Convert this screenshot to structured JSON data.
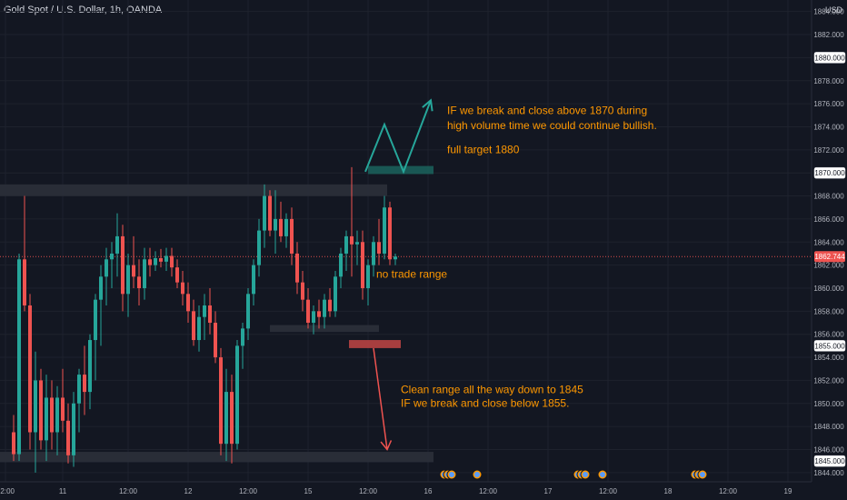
{
  "header": {
    "symbol_title": "Gold Spot / U.S. Dollar, 1h, OANDA",
    "currency": "USD"
  },
  "colors": {
    "background": "#131722",
    "grid": "#1e222d",
    "text": "#b2b5be",
    "bull": "#26a69a",
    "bear": "#ef5350",
    "annotation": "#ff9800",
    "teal_zone": "#1b5e5a",
    "red_zone": "#b84242",
    "gray_zone": "#2a2e39",
    "price_line": "#ef5350",
    "arrow_up": "#26a69a",
    "arrow_down": "#ef5350"
  },
  "chart_data": {
    "type": "candlestick",
    "title": "Gold Spot / U.S. Dollar, 1h, OANDA",
    "y_axis": {
      "side": "right",
      "unit": "USD",
      "ylim": [
        1843.2,
        1885.0
      ],
      "ticks": [
        1844,
        1846,
        1848,
        1850,
        1852,
        1854,
        1856,
        1858,
        1860,
        1862,
        1864,
        1866,
        1868,
        1870,
        1872,
        1874,
        1876,
        1878,
        1880,
        1882,
        1884
      ]
    },
    "x_axis": {
      "ticks": [
        {
          "label": "12:00",
          "bar": -1.5
        },
        {
          "label": "11",
          "bar": 9
        },
        {
          "label": "12:00",
          "bar": 21
        },
        {
          "label": "12",
          "bar": 32
        },
        {
          "label": "12:00",
          "bar": 43
        },
        {
          "label": "15",
          "bar": 54
        },
        {
          "label": "12:00",
          "bar": 65
        },
        {
          "label": "16",
          "bar": 76
        },
        {
          "label": "12:00",
          "bar": 87
        },
        {
          "label": "17",
          "bar": 98
        },
        {
          "label": "12:00",
          "bar": 109
        },
        {
          "label": "18",
          "bar": 120
        },
        {
          "label": "12:00",
          "bar": 131
        },
        {
          "label": "19",
          "bar": 142
        }
      ]
    },
    "candles": [
      [
        1847.5,
        1849.0,
        1845.0,
        1845.6
      ],
      [
        1845.6,
        1863.0,
        1845.0,
        1862.5
      ],
      [
        1862.5,
        1868.0,
        1858.0,
        1858.5
      ],
      [
        1858.5,
        1859.5,
        1846.0,
        1847.5
      ],
      [
        1847.5,
        1854.5,
        1844.0,
        1852.0
      ],
      [
        1852.0,
        1853.0,
        1846.0,
        1846.8
      ],
      [
        1846.8,
        1852.5,
        1845.0,
        1850.5
      ],
      [
        1850.5,
        1852.0,
        1846.0,
        1847.5
      ],
      [
        1847.5,
        1851.5,
        1845.5,
        1850.5
      ],
      [
        1850.5,
        1853.0,
        1847.5,
        1848.5
      ],
      [
        1848.5,
        1850.0,
        1844.8,
        1845.5
      ],
      [
        1845.5,
        1851.0,
        1844.5,
        1850.0
      ],
      [
        1850.0,
        1853.0,
        1847.5,
        1852.5
      ],
      [
        1852.5,
        1855.0,
        1849.0,
        1851.0
      ],
      [
        1851.0,
        1856.0,
        1849.5,
        1855.5
      ],
      [
        1855.5,
        1859.5,
        1852.0,
        1859.0
      ],
      [
        1859.0,
        1862.0,
        1855.0,
        1861.0
      ],
      [
        1861.0,
        1863.5,
        1858.5,
        1862.5
      ],
      [
        1862.5,
        1864.0,
        1860.0,
        1863.0
      ],
      [
        1863.0,
        1866.5,
        1861.0,
        1864.5
      ],
      [
        1864.5,
        1865.5,
        1858.0,
        1859.5
      ],
      [
        1859.5,
        1863.0,
        1857.5,
        1862.0
      ],
      [
        1862.0,
        1864.5,
        1860.0,
        1861.0
      ],
      [
        1861.0,
        1862.5,
        1858.5,
        1860.0
      ],
      [
        1860.0,
        1863.5,
        1859.0,
        1862.5
      ],
      [
        1862.5,
        1863.5,
        1861.0,
        1862.0
      ],
      [
        1862.0,
        1863.2,
        1861.5,
        1862.6
      ],
      [
        1862.6,
        1863.4,
        1861.8,
        1862.3
      ],
      [
        1862.3,
        1863.5,
        1861.5,
        1862.8
      ],
      [
        1862.8,
        1863.5,
        1861.0,
        1861.8
      ],
      [
        1861.8,
        1862.5,
        1860.0,
        1860.5
      ],
      [
        1860.5,
        1861.5,
        1858.5,
        1859.5
      ],
      [
        1859.5,
        1860.5,
        1857.0,
        1858.0
      ],
      [
        1858.0,
        1859.0,
        1855.0,
        1855.5
      ],
      [
        1855.5,
        1858.5,
        1854.5,
        1857.5
      ],
      [
        1857.5,
        1859.5,
        1855.5,
        1858.5
      ],
      [
        1858.5,
        1860.0,
        1856.0,
        1857.0
      ],
      [
        1857.0,
        1858.0,
        1853.5,
        1854.0
      ],
      [
        1854.0,
        1854.8,
        1845.5,
        1846.5
      ],
      [
        1846.5,
        1853.0,
        1845.0,
        1851.0
      ],
      [
        1851.0,
        1852.5,
        1844.8,
        1846.5
      ],
      [
        1846.5,
        1855.5,
        1846.0,
        1855.0
      ],
      [
        1855.0,
        1857.0,
        1853.0,
        1856.5
      ],
      [
        1856.5,
        1860.0,
        1855.5,
        1859.5
      ],
      [
        1859.5,
        1862.5,
        1858.5,
        1862.0
      ],
      [
        1862.0,
        1866.0,
        1861.0,
        1865.0
      ],
      [
        1865.0,
        1869.0,
        1863.5,
        1868.0
      ],
      [
        1868.0,
        1868.5,
        1864.5,
        1865.0
      ],
      [
        1865.0,
        1868.5,
        1863.0,
        1866.0
      ],
      [
        1866.0,
        1867.5,
        1864.0,
        1864.5
      ],
      [
        1864.5,
        1866.5,
        1863.5,
        1866.0
      ],
      [
        1866.0,
        1867.0,
        1862.0,
        1863.0
      ],
      [
        1863.0,
        1864.0,
        1859.5,
        1860.5
      ],
      [
        1860.5,
        1861.5,
        1858.0,
        1859.0
      ],
      [
        1859.0,
        1860.0,
        1856.5,
        1857.0
      ],
      [
        1857.0,
        1858.5,
        1856.0,
        1858.0
      ],
      [
        1858.0,
        1859.0,
        1856.5,
        1857.5
      ],
      [
        1857.5,
        1859.5,
        1856.5,
        1859.0
      ],
      [
        1859.0,
        1860.0,
        1857.5,
        1858.0
      ],
      [
        1858.0,
        1861.5,
        1857.5,
        1861.0
      ],
      [
        1861.0,
        1863.5,
        1860.0,
        1863.0
      ],
      [
        1863.0,
        1865.0,
        1861.5,
        1864.5
      ],
      [
        1864.5,
        1870.5,
        1861.0,
        1863.8
      ],
      [
        1863.8,
        1865.0,
        1862.0,
        1864.0
      ],
      [
        1864.0,
        1865.0,
        1859.0,
        1860.0
      ],
      [
        1860.0,
        1862.5,
        1858.5,
        1862.0
      ],
      [
        1862.0,
        1864.5,
        1861.0,
        1864.0
      ],
      [
        1864.0,
        1866.0,
        1862.0,
        1863.0
      ],
      [
        1863.0,
        1868.0,
        1862.5,
        1867.0
      ],
      [
        1867.0,
        1867.5,
        1862.0,
        1862.5
      ],
      [
        1862.5,
        1863.0,
        1862.0,
        1862.74
      ]
    ],
    "current_price": 1862.744,
    "axis_labels": [
      {
        "value": 1880.0,
        "text": "1880.000",
        "style": "highlight"
      },
      {
        "value": 1870.0,
        "text": "1870.000",
        "style": "highlight"
      },
      {
        "value": 1862.744,
        "text": "1862.744",
        "style": "price"
      },
      {
        "value": 1855.0,
        "text": "1855.000",
        "style": "highlight"
      },
      {
        "value": 1845.0,
        "text": "1845.000",
        "style": "highlight"
      }
    ],
    "zones": [
      {
        "x0": -7.0,
        "x1": 68.5,
        "y0": 1868.0,
        "y1": 1869.0,
        "color": "gray"
      },
      {
        "x0": 47.0,
        "x1": 67.0,
        "y0": 1856.2,
        "y1": 1856.8,
        "color": "gray"
      },
      {
        "x0": -6.5,
        "x1": 77.0,
        "y0": 1844.9,
        "y1": 1845.8,
        "color": "gray"
      },
      {
        "x0": 65.0,
        "x1": 77.0,
        "y0": 1869.9,
        "y1": 1870.6,
        "color": "teal"
      },
      {
        "x0": 61.5,
        "x1": 71.0,
        "y0": 1854.8,
        "y1": 1855.5,
        "color": "red"
      }
    ],
    "up_arrow": [
      [
        64.5,
        1870.1
      ],
      [
        68.0,
        1874.2
      ],
      [
        71.5,
        1870.1
      ],
      [
        76.5,
        1876.3
      ]
    ],
    "down_arrow": [
      [
        66.0,
        1854.8
      ],
      [
        68.5,
        1846.0
      ]
    ],
    "annotations": [
      {
        "text": "IF we break and close above 1870 during",
        "bar": 79.5,
        "value": 1875.1
      },
      {
        "text": "high volume time we could continue bullish.",
        "bar": 79.5,
        "value": 1873.8
      },
      {
        "text": "full target 1880",
        "bar": 79.5,
        "value": 1871.7
      },
      {
        "text": "no trade range",
        "bar": 66.5,
        "value": 1860.9
      },
      {
        "text": "Clean range all the way down to 1845",
        "bar": 71.0,
        "value": 1850.9
      },
      {
        "text": "IF we break and close below 1855.",
        "bar": 71.0,
        "value": 1849.7
      }
    ],
    "events": [
      {
        "bar": 79.0,
        "count": 3
      },
      {
        "bar": 85.0,
        "count": 1
      },
      {
        "bar": 103.5,
        "count": 3
      },
      {
        "bar": 108.0,
        "count": 1
      },
      {
        "bar": 125.0,
        "count": 3
      }
    ]
  }
}
